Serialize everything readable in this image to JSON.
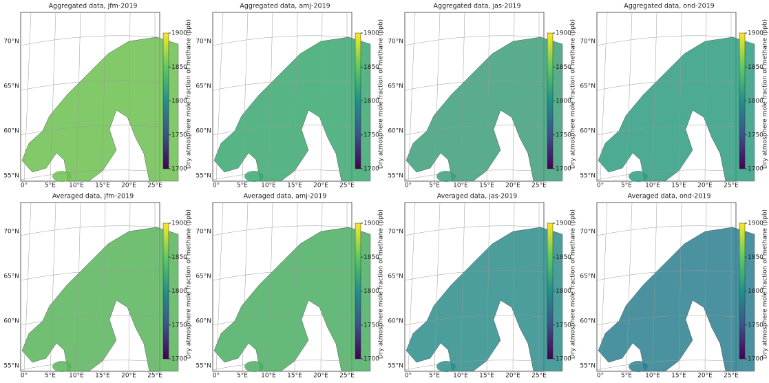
{
  "panels": [
    {
      "title": "Aggregated data, jfm-2019",
      "color": "#6cbf4f"
    },
    {
      "title": "Aggregated data, amj-2019",
      "color": "#3aa870"
    },
    {
      "title": "Aggregated data, jas-2019",
      "color": "#3c9e78"
    },
    {
      "title": "Aggregated data, ond-2019",
      "color": "#2e9c80"
    },
    {
      "title": "Averaged data, jfm-2019",
      "color": "#58b45a"
    },
    {
      "title": "Averaged data, amj-2019",
      "color": "#4aae62"
    },
    {
      "title": "Averaged data, jas-2019",
      "color": "#2b8d8a"
    },
    {
      "title": "Averaged data, ond-2019",
      "color": "#2a7f8e"
    }
  ],
  "lat_labels": [
    "70°N",
    "65°N",
    "60°N",
    "55°N"
  ],
  "lon_labels": [
    "0°",
    "5°E",
    "10°E",
    "15°E",
    "20°E",
    "25°E"
  ],
  "colorbar": {
    "label": "Dry atmosphere mole fraction of methane (ppb)",
    "ticks": [
      1900,
      1850,
      1800,
      1750,
      1700
    ]
  }
}
